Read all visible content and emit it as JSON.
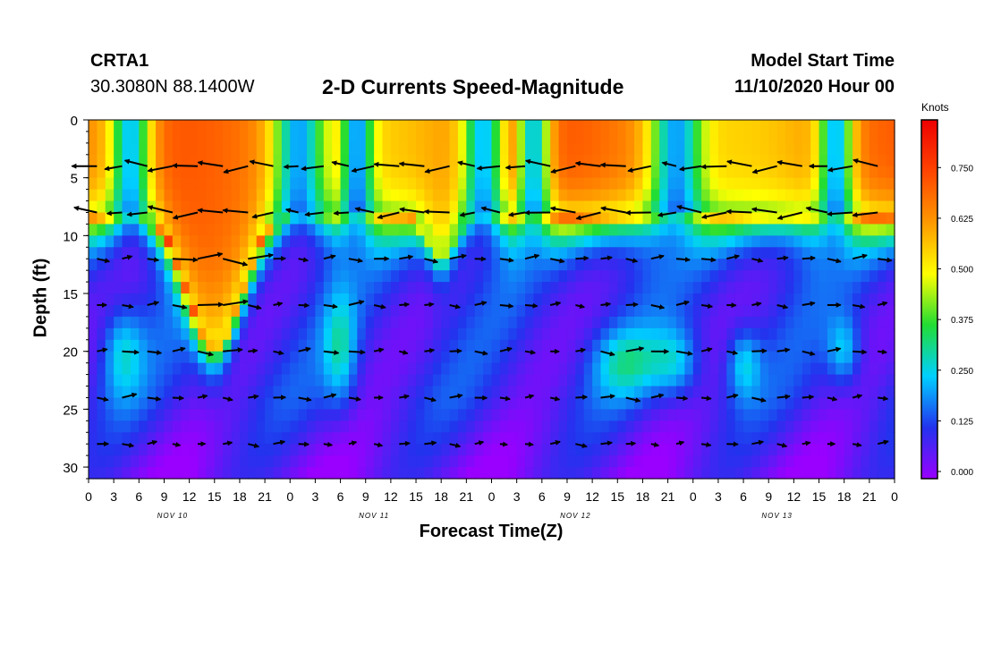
{
  "header": {
    "station": "CRTA1",
    "coords": "30.3080N 88.1400W",
    "title": "2-D Currents Speed-Magnitude",
    "start_label": "Model Start Time",
    "start_value": "11/10/2020 Hour 00"
  },
  "chart_data": {
    "type": "heatmap",
    "title": "2-D Currents Speed-Magnitude",
    "xlabel": "Forecast Time(Z)",
    "ylabel": "Depth (ft)",
    "x_range_hours": [
      0,
      96
    ],
    "ylim": [
      0,
      31
    ],
    "y_inverted": true,
    "x_tick_labels": [
      "0",
      "3",
      "6",
      "9",
      "12",
      "15",
      "18",
      "21",
      "0",
      "3",
      "6",
      "9",
      "12",
      "15",
      "18",
      "21",
      "0",
      "3",
      "6",
      "9",
      "12",
      "15",
      "18",
      "21",
      "0",
      "3",
      "6",
      "9",
      "12",
      "15",
      "18",
      "21",
      "0"
    ],
    "y_ticks": [
      0,
      5,
      10,
      15,
      20,
      25,
      30
    ],
    "day_labels": [
      "NOV 10",
      "NOV 11",
      "NOV 12",
      "NOV 13"
    ],
    "colorbar": {
      "label": "Knots",
      "ticks": [
        "0.000",
        "0.125",
        "0.250",
        "0.375",
        "0.500",
        "0.625",
        "0.750"
      ],
      "range": [
        0,
        0.85
      ],
      "colors": [
        "#9900ff",
        "#2233ee",
        "#00d0ff",
        "#22dd33",
        "#ffff00",
        "#ff9900",
        "#ff4400",
        "#ee0000"
      ]
    },
    "arrow_depths_ft": [
      4,
      8,
      12,
      16,
      20,
      24,
      28
    ]
  }
}
